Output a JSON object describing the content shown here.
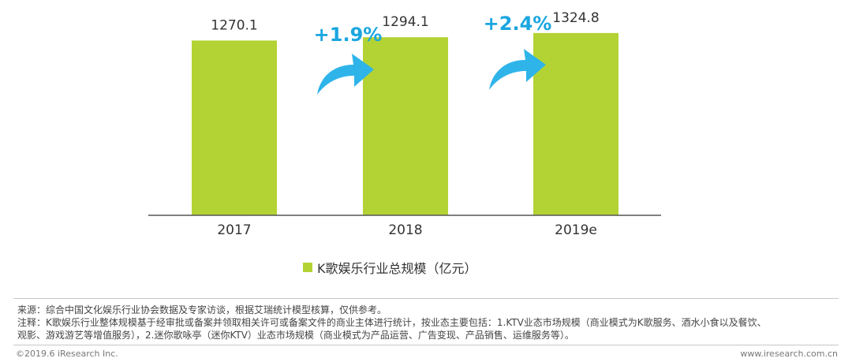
{
  "chart_data": {
    "type": "bar",
    "categories": [
      "2017",
      "2018",
      "2019e"
    ],
    "values": [
      1270.1,
      1294.1,
      1324.8
    ],
    "value_labels": [
      "1270.1",
      "1294.1",
      "1324.8"
    ],
    "series": [
      {
        "name": "K歌娱乐行业总规模（亿元）",
        "values": [
          1270.1,
          1294.1,
          1324.8
        ]
      }
    ],
    "growth_annotations": [
      "+1.9%",
      "+2.4%"
    ],
    "ylim": [
      0,
      1450
    ],
    "bar_color": "#b3d334",
    "arrow_color": "#2fb4ea",
    "growth_color": "#1aa6e0",
    "axis_color": "#555555",
    "legend_position": "bottom",
    "grid": false
  },
  "legend": {
    "label": "K歌娱乐行业总规模（亿元）"
  },
  "notes": {
    "source": "来源：综合中国文化娱乐行业协会数据及专家访谈，根据艾瑞统计模型核算，仅供参考。",
    "note_line1": "注释：K歌娱乐行业整体规模基于经审批或备案并领取相关许可或备案文件的商业主体进行统计，按业态主要包括：1.KTV业态市场规模（商业模式为K歌服务、酒水小食以及餐饮、",
    "note_line2": "观影、游戏游艺等增值服务），2.迷你歌咏亭（迷你KTV）业态市场规模（商业模式为产品运营、广告变现、产品销售、运维服务等）。"
  },
  "footer": {
    "copyright": "©2019.6 iResearch Inc.",
    "website": "www.iresearch.com.cn"
  }
}
